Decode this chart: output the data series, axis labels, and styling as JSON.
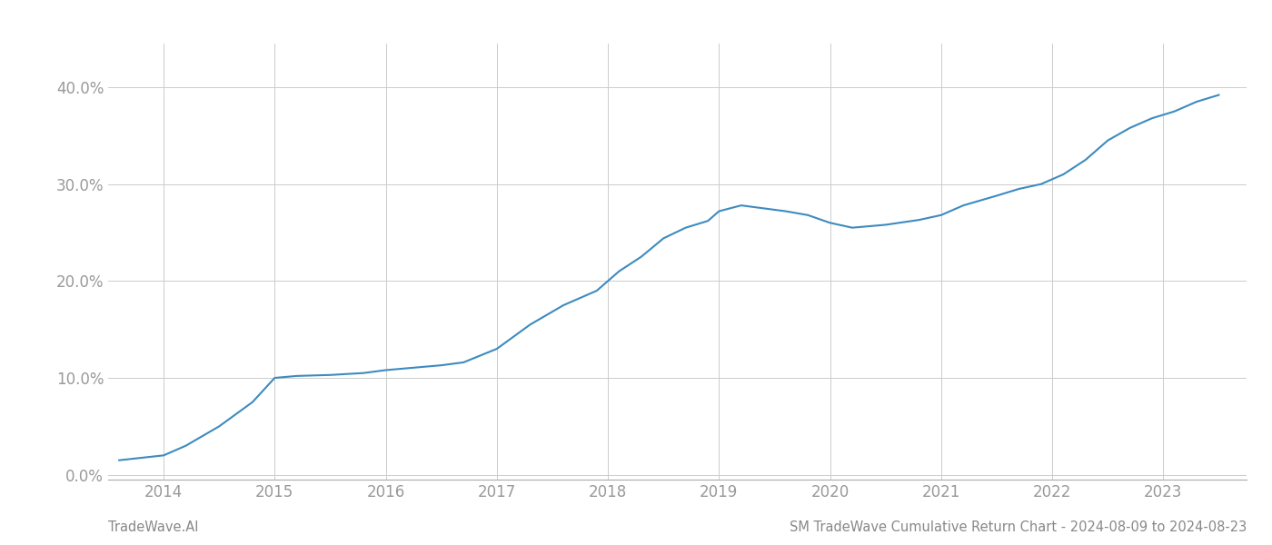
{
  "x_values": [
    2013.6,
    2014.0,
    2014.2,
    2014.5,
    2014.8,
    2015.0,
    2015.2,
    2015.5,
    2015.8,
    2016.0,
    2016.2,
    2016.5,
    2016.7,
    2017.0,
    2017.3,
    2017.6,
    2017.9,
    2018.1,
    2018.3,
    2018.5,
    2018.7,
    2018.9,
    2019.0,
    2019.2,
    2019.4,
    2019.6,
    2019.8,
    2020.0,
    2020.2,
    2020.5,
    2020.8,
    2021.0,
    2021.2,
    2021.5,
    2021.7,
    2021.9,
    2022.1,
    2022.3,
    2022.5,
    2022.7,
    2022.9,
    2023.1,
    2023.3,
    2023.5
  ],
  "y_values": [
    0.015,
    0.02,
    0.03,
    0.05,
    0.075,
    0.1,
    0.102,
    0.103,
    0.105,
    0.108,
    0.11,
    0.113,
    0.116,
    0.13,
    0.155,
    0.175,
    0.19,
    0.21,
    0.225,
    0.244,
    0.255,
    0.262,
    0.272,
    0.278,
    0.275,
    0.272,
    0.268,
    0.26,
    0.255,
    0.258,
    0.263,
    0.268,
    0.278,
    0.288,
    0.295,
    0.3,
    0.31,
    0.325,
    0.345,
    0.358,
    0.368,
    0.375,
    0.385,
    0.392
  ],
  "line_color": "#3d8bbf",
  "line_width": 1.5,
  "xlim": [
    2013.5,
    2023.75
  ],
  "ylim": [
    -0.005,
    0.445
  ],
  "xtick_labels": [
    "2014",
    "2015",
    "2016",
    "2017",
    "2018",
    "2019",
    "2020",
    "2021",
    "2022",
    "2023"
  ],
  "xtick_positions": [
    2014,
    2015,
    2016,
    2017,
    2018,
    2019,
    2020,
    2021,
    2022,
    2023
  ],
  "ytick_positions": [
    0.0,
    0.1,
    0.2,
    0.3,
    0.4
  ],
  "ytick_labels": [
    "0.0%",
    "10.0%",
    "20.0%",
    "30.0%",
    "40.0%"
  ],
  "grid_color": "#cccccc",
  "background_color": "#ffffff",
  "footer_left": "TradeWave.AI",
  "footer_right": "SM TradeWave Cumulative Return Chart - 2024-08-09 to 2024-08-23",
  "footer_color": "#888888",
  "footer_fontsize": 10.5,
  "tick_fontsize": 12,
  "tick_color": "#999999"
}
